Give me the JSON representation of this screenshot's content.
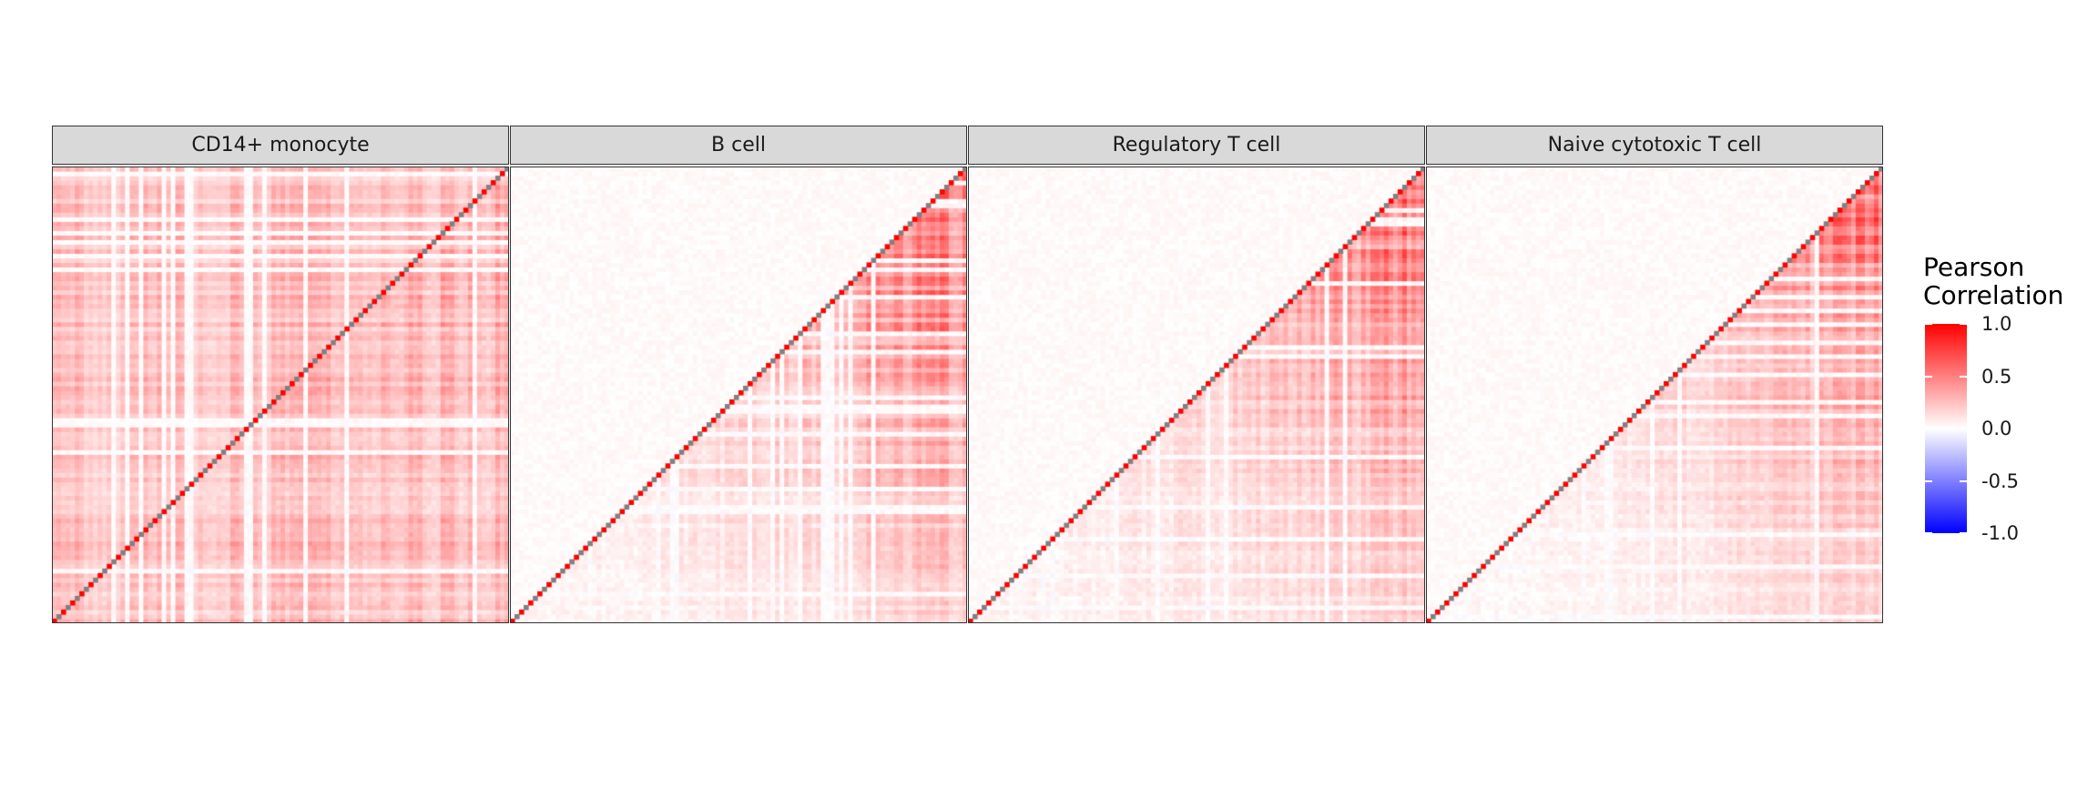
{
  "chart_data": {
    "type": "heatmap",
    "panels": [
      {
        "title": "CD14+ monocyte",
        "base": 0.32,
        "gradient": 0.08
      },
      {
        "title": "B cell",
        "base": 0.05,
        "gradient": 0.78
      },
      {
        "title": "Regulatory T cell",
        "base": 0.06,
        "gradient": 0.7
      },
      {
        "title": "Naive cytotoxic T cell",
        "base": 0.03,
        "gradient": 0.7
      }
    ],
    "matrix_size": 100,
    "triangle": "upper",
    "diagonal_colors": [
      "#ff0000",
      "#808080"
    ],
    "legend": {
      "title": "Pearson\nCorrelation",
      "range": [
        -1.0,
        1.0
      ],
      "ticks": [
        "1.0",
        "0.5",
        "0.0",
        "-0.5",
        "-1.0"
      ],
      "colors": {
        "high": "#ff0000",
        "mid": "#ffffff",
        "low": "#0000ff"
      }
    }
  }
}
